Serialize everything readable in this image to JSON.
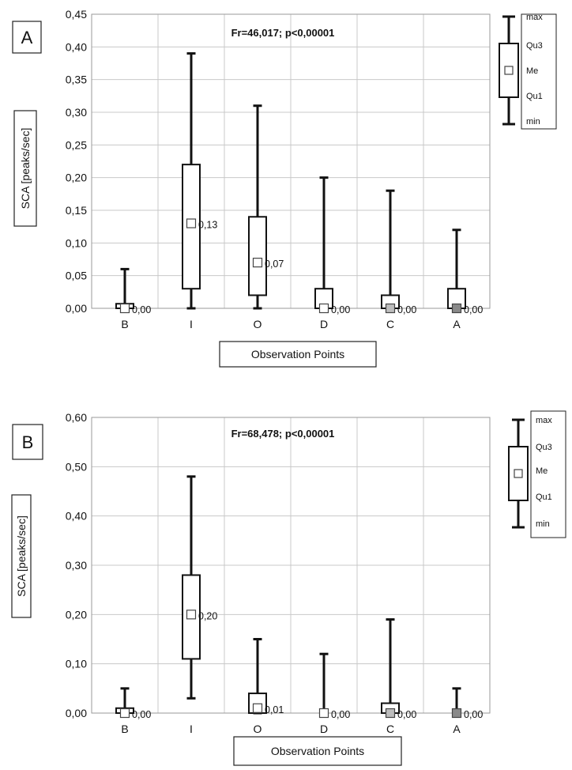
{
  "chart_data": [
    {
      "type": "boxplot",
      "panel_label": "A",
      "annotation": "Fr=46,017; p<0,00001",
      "xlabel": "Observation Points",
      "ylabel": "SCA  [peaks/sec]",
      "ylim": [
        0,
        0.45
      ],
      "yticks": [
        "0,00",
        "0,05",
        "0,10",
        "0,15",
        "0,20",
        "0,25",
        "0,30",
        "0,35",
        "0,40",
        "0,45"
      ],
      "categories": [
        "B",
        "I",
        "O",
        "D",
        "C",
        "A"
      ],
      "boxes": [
        {
          "category": "B",
          "min": 0.0,
          "q1": 0.0,
          "median": 0.0,
          "q3": 0.007,
          "max": 0.06,
          "median_label": "0,00",
          "marker_color": "#ffffff"
        },
        {
          "category": "I",
          "min": 0.0,
          "q1": 0.03,
          "median": 0.13,
          "q3": 0.22,
          "max": 0.39,
          "median_label": "0,13",
          "marker_color": "#ffffff"
        },
        {
          "category": "O",
          "min": 0.0,
          "q1": 0.02,
          "median": 0.07,
          "q3": 0.14,
          "max": 0.31,
          "median_label": "0,07",
          "marker_color": "#ffffff"
        },
        {
          "category": "D",
          "min": 0.0,
          "q1": 0.0,
          "median": 0.0,
          "q3": 0.03,
          "max": 0.2,
          "median_label": "0,00",
          "marker_color": "#ffffff"
        },
        {
          "category": "C",
          "min": 0.0,
          "q1": 0.0,
          "median": 0.0,
          "q3": 0.02,
          "max": 0.18,
          "median_label": "0,00",
          "marker_color": "#bdbdbd"
        },
        {
          "category": "A",
          "min": 0.0,
          "q1": 0.0,
          "median": 0.0,
          "q3": 0.03,
          "max": 0.12,
          "median_label": "0,00",
          "marker_color": "#8a8a8a"
        }
      ],
      "legend": {
        "items": [
          "max",
          "Qu3",
          "Me",
          "Qu1",
          "min"
        ],
        "placement": "right"
      },
      "grid": true
    },
    {
      "type": "boxplot",
      "panel_label": "B",
      "annotation": "Fr=68,478; p<0,00001",
      "xlabel": "Observation Points",
      "ylabel": "SCA  [peaks/sec]",
      "ylim": [
        0,
        0.6
      ],
      "yticks": [
        "0,00",
        "0,10",
        "0,20",
        "0,30",
        "0,40",
        "0,50",
        "0,60"
      ],
      "categories": [
        "B",
        "I",
        "O",
        "D",
        "C",
        "A"
      ],
      "boxes": [
        {
          "category": "B",
          "min": 0.0,
          "q1": 0.0,
          "median": 0.0,
          "q3": 0.01,
          "max": 0.05,
          "median_label": "0,00",
          "marker_color": "#ffffff"
        },
        {
          "category": "I",
          "min": 0.03,
          "q1": 0.11,
          "median": 0.2,
          "q3": 0.28,
          "max": 0.48,
          "median_label": "0,20",
          "marker_color": "#ffffff"
        },
        {
          "category": "O",
          "min": 0.0,
          "q1": 0.0,
          "median": 0.01,
          "q3": 0.04,
          "max": 0.15,
          "median_label": "0,01",
          "marker_color": "#ffffff"
        },
        {
          "category": "D",
          "min": 0.0,
          "q1": 0.0,
          "median": 0.0,
          "q3": 0.0,
          "max": 0.12,
          "median_label": "0,00",
          "marker_color": "#ffffff"
        },
        {
          "category": "C",
          "min": 0.0,
          "q1": 0.0,
          "median": 0.0,
          "q3": 0.02,
          "max": 0.19,
          "median_label": "0,00",
          "marker_color": "#bdbdbd"
        },
        {
          "category": "A",
          "min": 0.0,
          "q1": 0.0,
          "median": 0.0,
          "q3": 0.0,
          "max": 0.05,
          "median_label": "0,00",
          "marker_color": "#8a8a8a"
        }
      ],
      "legend": {
        "items": [
          "max",
          "Qu3",
          "Me",
          "Qu1",
          "min"
        ],
        "placement": "right"
      },
      "grid": true
    }
  ]
}
